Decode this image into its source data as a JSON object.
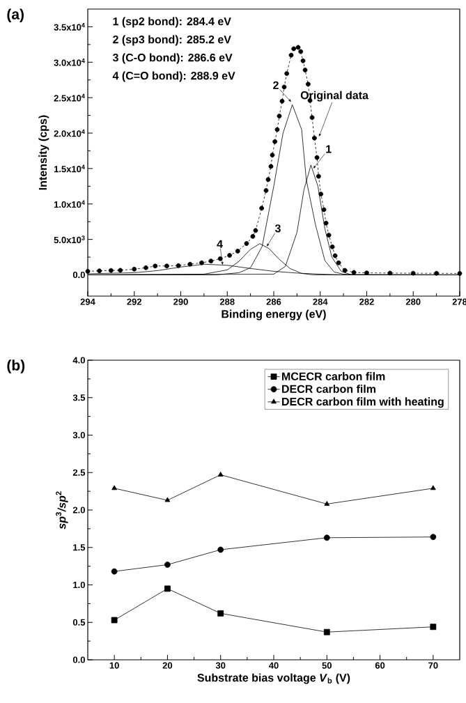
{
  "chart_data": [
    {
      "type": "line",
      "title": "(a)",
      "xlabel": "Binding energy (eV)",
      "ylabel": "Intensity (cps)",
      "xlim": [
        294,
        278
      ],
      "xticks": [
        294,
        292,
        290,
        288,
        286,
        284,
        282,
        280,
        278
      ],
      "ylim": [
        -3000,
        37500
      ],
      "yticks": [
        {
          "value": 0,
          "label": "0.0"
        },
        {
          "value": 5000,
          "label": "5.0x10$^{3}$"
        },
        {
          "value": 10000,
          "label": "1.0x10$^{4}$"
        },
        {
          "value": 15000,
          "label": "1.5x10$^{4}$"
        },
        {
          "value": 20000,
          "label": "2.0x10$^{4}$"
        },
        {
          "value": 25000,
          "label": "2.5x10$^{4}$"
        },
        {
          "value": 30000,
          "label": "3.0x10$^{4}$"
        },
        {
          "value": 35000,
          "label": "3.5x10$^{4}$"
        }
      ],
      "annotations": [
        "1 (sp2 bond): 284.4 eV",
        "2 (sp3 bond): 285.2 eV",
        "3 (C-O bond): 286.6 eV",
        "4 (C=O bond): 288.9 eV",
        {
          "text": "2",
          "x": 285.25,
          "y": 24400
        },
        {
          "text": "Original data",
          "x": 284.05,
          "y": 19500
        },
        {
          "text": "1",
          "x": 284.3,
          "y": 15000
        },
        {
          "text": "3",
          "x": 286.3,
          "y": 4000
        },
        {
          "text": "4",
          "x": 288.2,
          "y": 1400
        }
      ],
      "series": [
        {
          "type": "line",
          "marker": "circle",
          "line_style": "dashed",
          "color": "#000000",
          "x": [
            294,
            293.5,
            293,
            292.6,
            292,
            291.5,
            291.1,
            290.6,
            290.1,
            289.6,
            289.1,
            288.7,
            288.3,
            287.9,
            287.55,
            287.17,
            286.9,
            286.78,
            286.52,
            286.33,
            286.24,
            286.12,
            286.06,
            285.95,
            285.85,
            285.76,
            285.64,
            285.55,
            285.44,
            285.25,
            285.14,
            284.95,
            284.84,
            284.74,
            284.65,
            284.52,
            284.44,
            284.35,
            284.25,
            284.14,
            284.07,
            283.97,
            283.84,
            283.75,
            283.63,
            283.48,
            283.36,
            283.21,
            282.94,
            282.55,
            282,
            281,
            280,
            279,
            278
          ],
          "values": [
            500,
            560,
            620,
            650,
            800,
            1000,
            1250,
            1250,
            1300,
            1500,
            1700,
            1950,
            2280,
            2750,
            3350,
            4420,
            5430,
            6260,
            9400,
            11900,
            13450,
            15300,
            16900,
            18800,
            20500,
            22400,
            24500,
            26500,
            28400,
            31000,
            31900,
            32100,
            31500,
            30200,
            28900,
            26900,
            24600,
            22200,
            19300,
            16550,
            13900,
            11400,
            9200,
            7300,
            5600,
            3950,
            2700,
            1700,
            630,
            340,
            280,
            250,
            230,
            220,
            200
          ]
        },
        {
          "type": "line",
          "marker": "none",
          "line_style": "solid",
          "color": "#000000",
          "x": [
            294,
            286,
            285.5,
            285,
            284.7,
            284.4,
            284.1,
            283.8,
            283.5,
            283.1,
            282.7,
            278
          ],
          "values": [
            0,
            100,
            1200,
            6000,
            12000,
            15500,
            12500,
            6500,
            2500,
            500,
            50,
            0
          ]
        },
        {
          "type": "line",
          "marker": "none",
          "line_style": "solid",
          "color": "#000000",
          "x": [
            294,
            288.5,
            287.5,
            287,
            286.5,
            286,
            285.6,
            285.2,
            284.8,
            284.6,
            284.2,
            283.8,
            283.4,
            283,
            282.5,
            278
          ],
          "values": [
            0,
            0,
            300,
            1000,
            4000,
            12500,
            20000,
            24000,
            20500,
            13400,
            7000,
            2000,
            400,
            100,
            0,
            0
          ]
        },
        {
          "type": "line",
          "marker": "none",
          "line_style": "solid",
          "color": "#000000",
          "x": [
            294,
            289,
            288,
            287.5,
            287,
            286.6,
            286.2,
            285.8,
            285.3,
            284.8,
            284.3,
            278
          ],
          "values": [
            0,
            100,
            700,
            1900,
            3600,
            4400,
            3700,
            2300,
            900,
            200,
            0,
            0
          ]
        },
        {
          "type": "line",
          "marker": "none",
          "line_style": "solid",
          "color": "#000000",
          "x": [
            294,
            292,
            291,
            290,
            289,
            288,
            287,
            286,
            285,
            284,
            283,
            278
          ],
          "values": [
            150,
            300,
            600,
            1100,
            1500,
            1350,
            900,
            500,
            250,
            100,
            0,
            0
          ]
        }
      ]
    },
    {
      "type": "line",
      "title": "(b)",
      "xlabel": "Substrate bias voltage *V*$_{b}$ (V)",
      "ylabel": "*sp*$^{3}$*/sp*$^{2}$",
      "x": [
        10,
        20,
        30,
        50,
        70
      ],
      "xlim": [
        5,
        75
      ],
      "xticks": [
        10,
        20,
        30,
        40,
        50,
        60,
        70
      ],
      "ylim": [
        0,
        4
      ],
      "yticks": [
        {
          "value": 0,
          "label": "0.0"
        },
        {
          "value": 0.5,
          "label": "0.5"
        },
        {
          "value": 1,
          "label": "1.0"
        },
        {
          "value": 1.5,
          "label": "1.5"
        },
        {
          "value": 2,
          "label": "2.0"
        },
        {
          "value": 2.5,
          "label": "2.5"
        },
        {
          "value": 3,
          "label": "3.0"
        },
        {
          "value": 3.5,
          "label": "3.5"
        },
        {
          "value": 4,
          "label": "4.0"
        }
      ],
      "legend": "top right",
      "line_style": "solid",
      "series": [
        {
          "name": "MCECR carbon film",
          "marker": "square",
          "color": "#000000",
          "values": [
            0.53,
            0.95,
            0.62,
            0.37,
            0.44
          ]
        },
        {
          "name": "DECR carbon film",
          "marker": "circle",
          "color": "#000000",
          "values": [
            1.18,
            1.27,
            1.47,
            1.63,
            1.64
          ]
        },
        {
          "name": "DECR carbon film with heating",
          "marker": "triangle",
          "color": "#000000",
          "values": [
            2.29,
            2.13,
            2.47,
            2.08,
            2.29
          ]
        }
      ]
    }
  ]
}
